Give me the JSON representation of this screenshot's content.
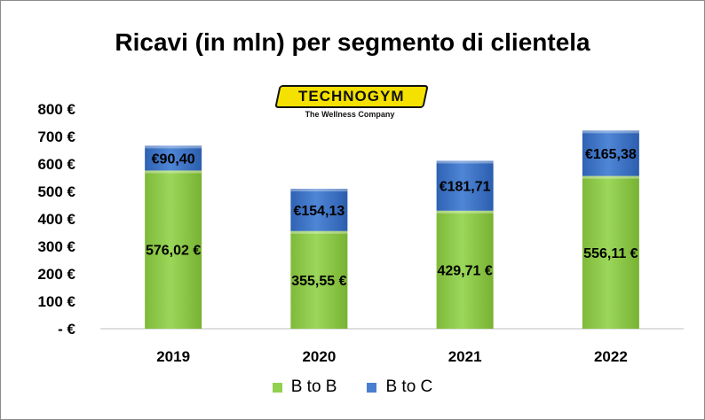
{
  "chart_data": {
    "type": "bar",
    "stacked": true,
    "title": "Ricavi (in mln) per segmento di clientela",
    "categories": [
      "2019",
      "2020",
      "2021",
      "2022"
    ],
    "series": [
      {
        "name": "B to B",
        "values": [
          576.02,
          355.55,
          429.71,
          556.11
        ],
        "labels": [
          "576,02 €",
          "355,55 €",
          "429,71 €",
          "556,11 €"
        ],
        "color": "#92d050"
      },
      {
        "name": "B to C",
        "values": [
          90.4,
          154.13,
          181.71,
          165.38
        ],
        "labels": [
          "€90,40",
          "€154,13",
          "€181,71",
          "€165,38"
        ],
        "color": "#4a7fd0"
      }
    ],
    "ylim": [
      0,
      800
    ],
    "yticks": [
      0,
      100,
      200,
      300,
      400,
      500,
      600,
      700,
      800
    ],
    "ytick_labels": [
      "- €",
      "100 €",
      "200 €",
      "300 €",
      "400 €",
      "500 €",
      "600 €",
      "700 €",
      "800 €"
    ],
    "grid": false,
    "legend": "bottom"
  },
  "logo": {
    "brand": "TECHNOGYM",
    "tagline": "The Wellness Company"
  }
}
